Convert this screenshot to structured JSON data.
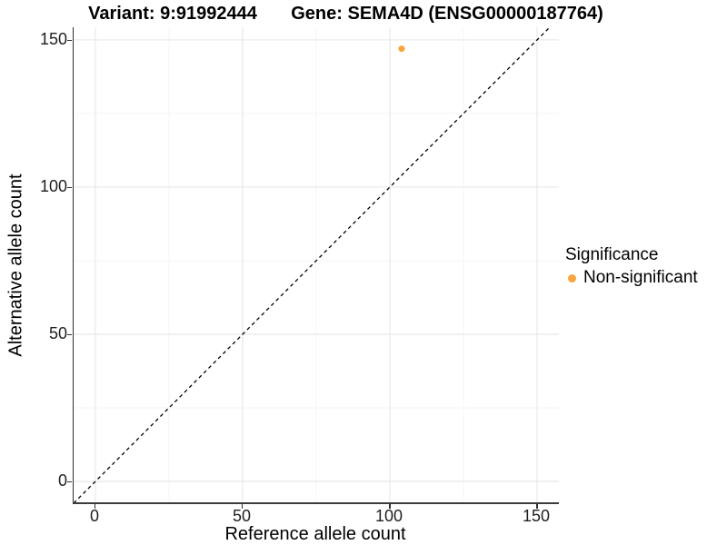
{
  "chart_data": {
    "type": "scatter",
    "title_left": "Variant: 9:91992444",
    "title_right": "Gene: SEMA4D (ENSG00000187764)",
    "xlabel": "Reference allele count",
    "ylabel": "Alternative allele count",
    "xlim": [
      -7.4,
      157.4
    ],
    "ylim": [
      -7.1,
      154.3
    ],
    "x_ticks": [
      0,
      50,
      100,
      150
    ],
    "y_ticks": [
      0,
      50,
      100,
      150
    ],
    "x_tick_labels": [
      "0",
      "50",
      "100",
      "150"
    ],
    "y_tick_labels": [
      "0",
      "50",
      "100",
      "150"
    ],
    "x_minor_ticks": [
      25,
      75,
      125
    ],
    "y_minor_ticks": [
      25,
      75,
      125
    ],
    "grid": true,
    "points": [
      {
        "x": 104,
        "y": 147,
        "series": "Non-significant"
      }
    ],
    "abline": {
      "slope": 1,
      "intercept": 0,
      "style": "dashed"
    },
    "legend": {
      "title": "Significance",
      "position": "right",
      "items": [
        {
          "label": "Non-significant",
          "color": "#FAA43C"
        }
      ]
    },
    "colors": {
      "point": "#FAA43C",
      "abline": "#000000",
      "grid_major": "#E8E8E8",
      "grid_minor": "#F4F4F4",
      "axis_line": "#2F2F2F",
      "tick_text": "#1F1F1F",
      "title_text": "#000000"
    }
  }
}
